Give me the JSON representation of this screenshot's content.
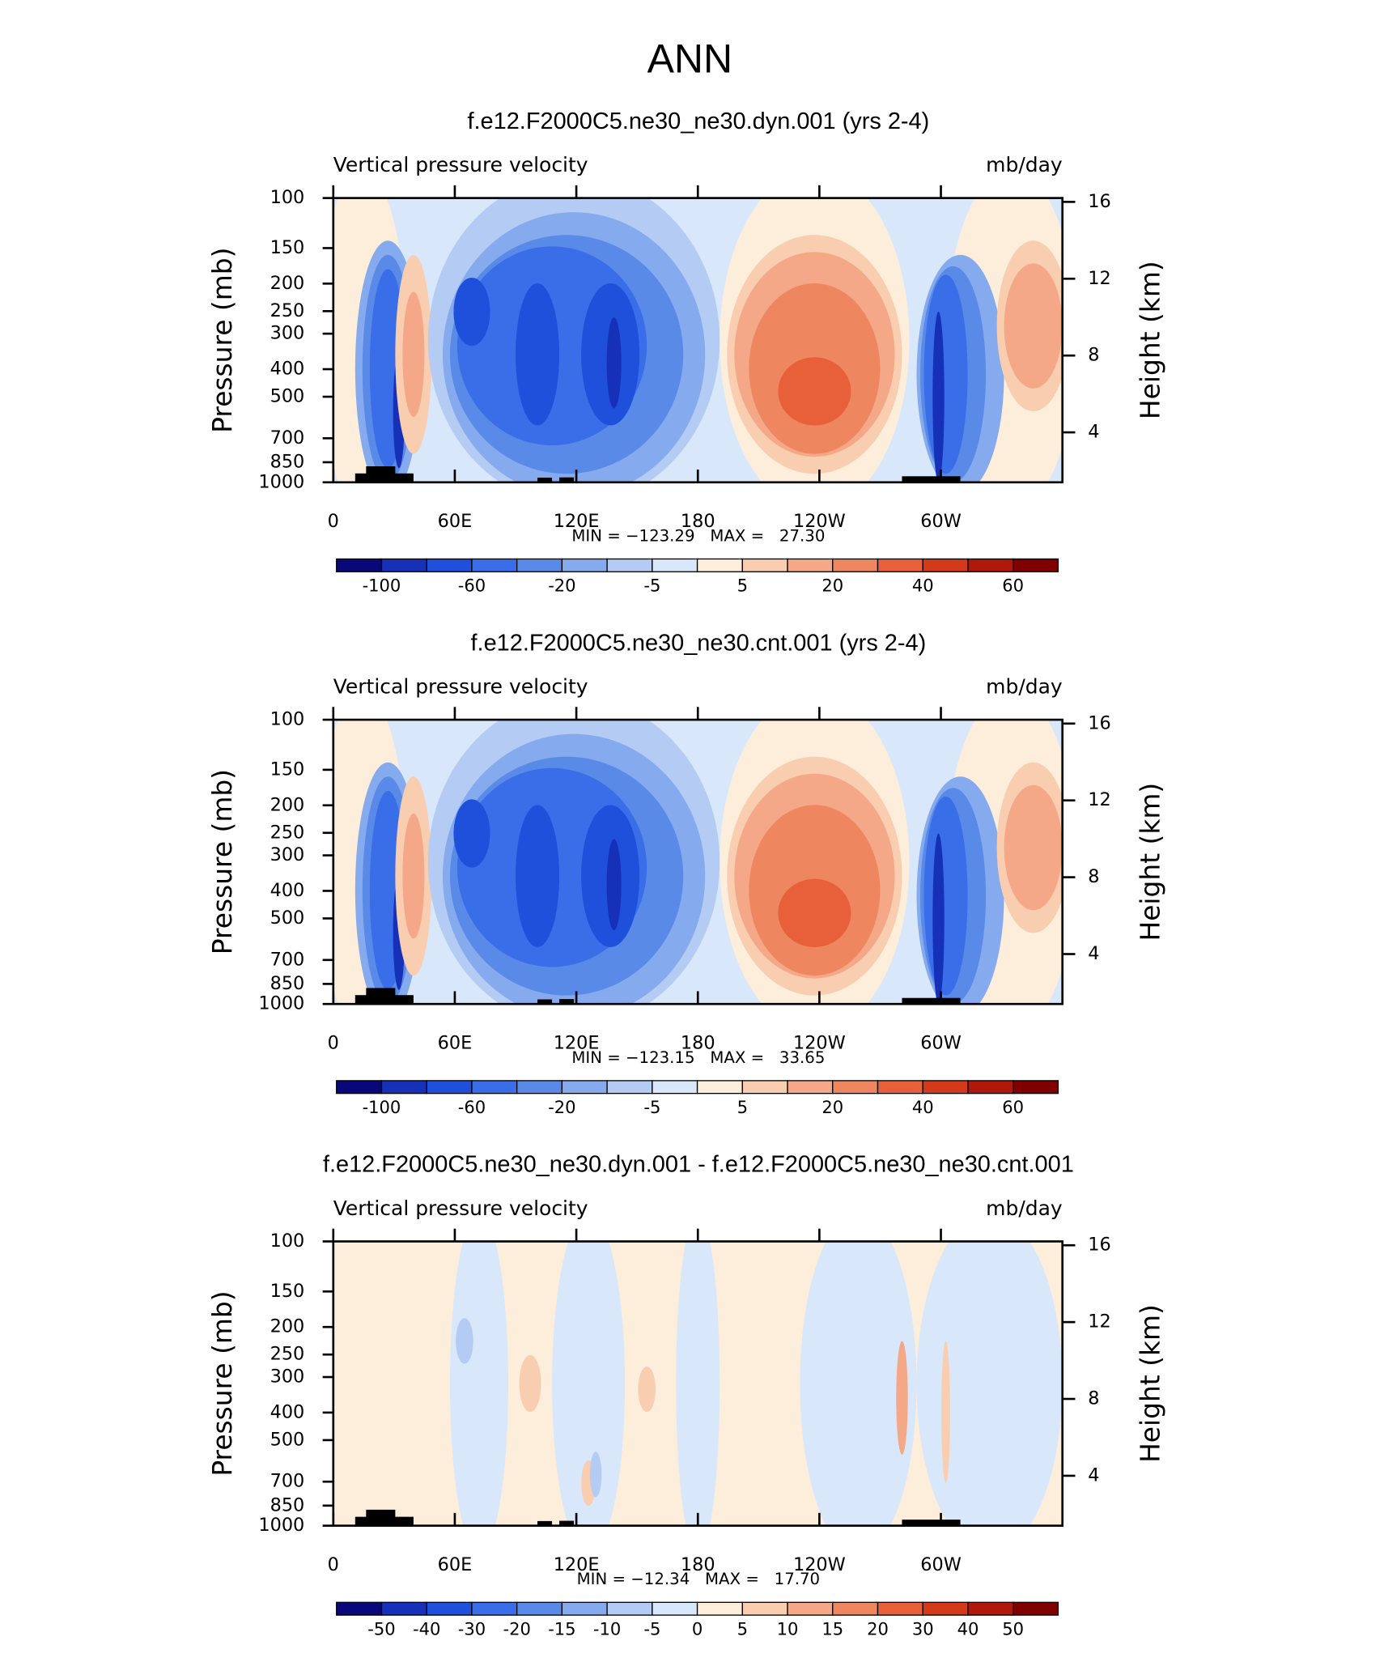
{
  "title": "ANN",
  "chart_data": [
    {
      "type": "contour",
      "title": "f.e12.F2000C5.ne30_ne30.dyn.001 (yrs 2-4)",
      "left_label": "Vertical pressure velocity",
      "right_label": "mb/day",
      "ylabel": "Pressure (mb)",
      "y2label": "Height (km)",
      "xlim": [
        0,
        360
      ],
      "xticks": [
        0,
        {
          "value": 60,
          "label": "60E"
        },
        {
          "value": 120,
          "label": "120E"
        },
        180,
        {
          "value": 240,
          "label": "120W"
        },
        {
          "value": 300,
          "label": "60W"
        }
      ],
      "ylim": [
        1000,
        100
      ],
      "yscale": "log",
      "yticks": [
        100,
        150,
        200,
        250,
        300,
        400,
        500,
        700,
        850,
        1000
      ],
      "y2lim": [
        1.4,
        16.2
      ],
      "y2ticks": [
        4,
        8,
        12,
        16
      ],
      "stats": "MIN = −123.29   MAX =   27.30",
      "colorbar": {
        "colors": [
          "#08087a",
          "#1630b8",
          "#1f50dc",
          "#3a6ee8",
          "#5a8ae8",
          "#86aaee",
          "#b4ccf4",
          "#d8e8fa",
          "#fdeedc",
          "#f9cdb0",
          "#f4a888",
          "#ee8660",
          "#e8603a",
          "#d23a1a",
          "#b0180a",
          "#800000"
        ],
        "labels": [
          -100,
          null,
          -60,
          null,
          -20,
          null,
          -5,
          null,
          5,
          null,
          20,
          null,
          40,
          null,
          60
        ]
      }
    },
    {
      "type": "contour",
      "title": "f.e12.F2000C5.ne30_ne30.cnt.001 (yrs 2-4)",
      "left_label": "Vertical pressure velocity",
      "right_label": "mb/day",
      "ylabel": "Pressure (mb)",
      "y2label": "Height (km)",
      "xlim": [
        0,
        360
      ],
      "xticks": [
        0,
        {
          "value": 60,
          "label": "60E"
        },
        {
          "value": 120,
          "label": "120E"
        },
        180,
        {
          "value": 240,
          "label": "120W"
        },
        {
          "value": 300,
          "label": "60W"
        }
      ],
      "ylim": [
        1000,
        100
      ],
      "yscale": "log",
      "yticks": [
        100,
        150,
        200,
        250,
        300,
        400,
        500,
        700,
        850,
        1000
      ],
      "y2lim": [
        1.4,
        16.2
      ],
      "y2ticks": [
        4,
        8,
        12,
        16
      ],
      "stats": "MIN = −123.15   MAX =   33.65",
      "colorbar": {
        "colors": [
          "#08087a",
          "#1630b8",
          "#1f50dc",
          "#3a6ee8",
          "#5a8ae8",
          "#86aaee",
          "#b4ccf4",
          "#d8e8fa",
          "#fdeedc",
          "#f9cdb0",
          "#f4a888",
          "#ee8660",
          "#e8603a",
          "#d23a1a",
          "#b0180a",
          "#800000"
        ],
        "labels": [
          -100,
          null,
          -60,
          null,
          -20,
          null,
          -5,
          null,
          5,
          null,
          20,
          null,
          40,
          null,
          60
        ]
      }
    },
    {
      "type": "contour",
      "title": "f.e12.F2000C5.ne30_ne30.dyn.001 - f.e12.F2000C5.ne30_ne30.cnt.001",
      "left_label": "Vertical pressure velocity",
      "right_label": "mb/day",
      "ylabel": "Pressure (mb)",
      "y2label": "Height (km)",
      "xlim": [
        0,
        360
      ],
      "xticks": [
        0,
        {
          "value": 60,
          "label": "60E"
        },
        {
          "value": 120,
          "label": "120E"
        },
        180,
        {
          "value": 240,
          "label": "120W"
        },
        {
          "value": 300,
          "label": "60W"
        }
      ],
      "ylim": [
        1000,
        100
      ],
      "yscale": "log",
      "yticks": [
        100,
        150,
        200,
        250,
        300,
        400,
        500,
        700,
        850,
        1000
      ],
      "y2lim": [
        1.4,
        16.2
      ],
      "y2ticks": [
        4,
        8,
        12,
        16
      ],
      "stats": "MIN = −12.34   MAX =   17.70",
      "colorbar": {
        "colors": [
          "#08087a",
          "#1630b8",
          "#1f50dc",
          "#3a6ee8",
          "#5a8ae8",
          "#86aaee",
          "#b4ccf4",
          "#d8e8fa",
          "#fdeedc",
          "#f9cdb0",
          "#f4a888",
          "#ee8660",
          "#e8603a",
          "#d23a1a",
          "#b0180a",
          "#800000"
        ],
        "labels": [
          -50,
          -40,
          -30,
          -20,
          -15,
          -10,
          -5,
          0,
          5,
          10,
          15,
          20,
          30,
          40,
          50
        ]
      }
    }
  ]
}
